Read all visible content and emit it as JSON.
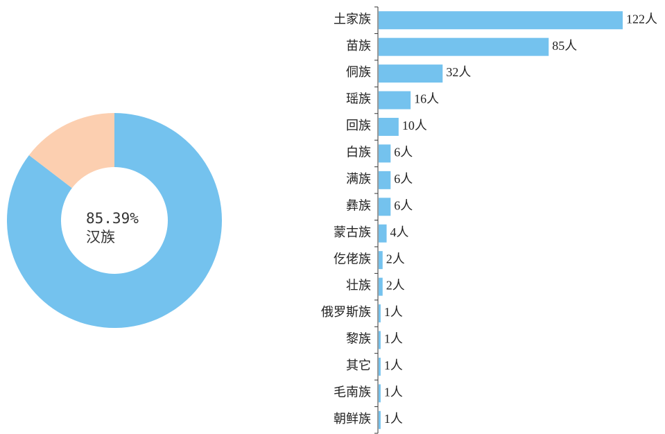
{
  "chart_data": [
    {
      "type": "pie",
      "categories": [
        "汉族",
        null
      ],
      "values": [
        85.39,
        14.61
      ],
      "value_labels": [
        "85.39%",
        null
      ],
      "colors": [
        "#74c2ee",
        "#fccfb0"
      ],
      "donut": true
    },
    {
      "type": "barh",
      "categories": [
        "土家族",
        "苗族",
        "侗族",
        "瑶族",
        "回族",
        "白族",
        "满族",
        "彝族",
        "蒙古族",
        "仡佬族",
        "壮族",
        "俄罗斯族",
        "黎族",
        "其它",
        "毛南族",
        "朝鲜族"
      ],
      "values": [
        122,
        85,
        32,
        16,
        10,
        6,
        6,
        6,
        4,
        2,
        2,
        1,
        1,
        1,
        1,
        1
      ],
      "value_labels": [
        "122人",
        "85人",
        "32人",
        "16人",
        "10人",
        "6人",
        "6人",
        "6人",
        "4人",
        "2人",
        "2人",
        "1人",
        "1人",
        "1人",
        "1人",
        "1人"
      ],
      "color": "#74c2ee",
      "xlim": [
        0,
        122
      ]
    }
  ]
}
